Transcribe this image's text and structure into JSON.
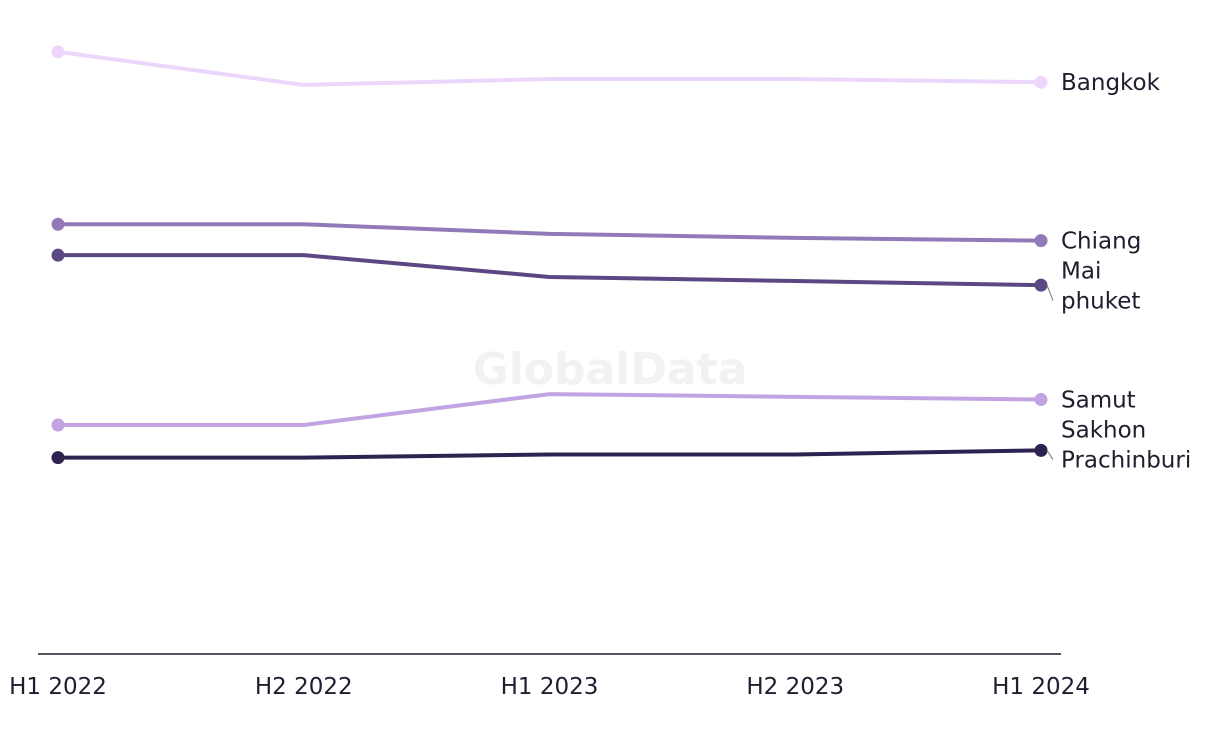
{
  "chart_data": {
    "type": "line",
    "title": "",
    "xlabel": "",
    "ylabel": "",
    "categories": [
      "H1 2022",
      "H2 2022",
      "H1 2023",
      "H2 2023",
      "H1 2024"
    ],
    "ylim": [
      0,
      100
    ],
    "grid": false,
    "legend": "direct labels at right end of lines",
    "watermark": "GlobalData",
    "series": [
      {
        "name": "Bangkok",
        "color": "#ecd6fb",
        "values": [
          93.0,
          85.7,
          87.0,
          87.0,
          86.3
        ],
        "label_lines": [
          "Bangkok"
        ]
      },
      {
        "name": "Chiang Mai",
        "color": "#927ab9",
        "values": [
          55.0,
          55.0,
          52.9,
          52.0,
          51.4
        ],
        "label_lines": [
          "Chiang",
          "Mai"
        ]
      },
      {
        "name": "phuket",
        "color": "#5b4882",
        "values": [
          48.2,
          48.2,
          43.4,
          42.5,
          41.6
        ],
        "label_lines": [
          "phuket"
        ]
      },
      {
        "name": "Samut Sakhon",
        "color": "#c3a4e3",
        "values": [
          10.8,
          10.8,
          17.6,
          17.0,
          16.4
        ],
        "label_lines": [
          "Samut",
          "Sakhon"
        ]
      },
      {
        "name": "Prachinburi",
        "color": "#2e2250",
        "values": [
          3.6,
          3.6,
          4.3,
          4.3,
          5.2
        ],
        "label_lines": [
          "Prachinburi"
        ]
      }
    ]
  }
}
